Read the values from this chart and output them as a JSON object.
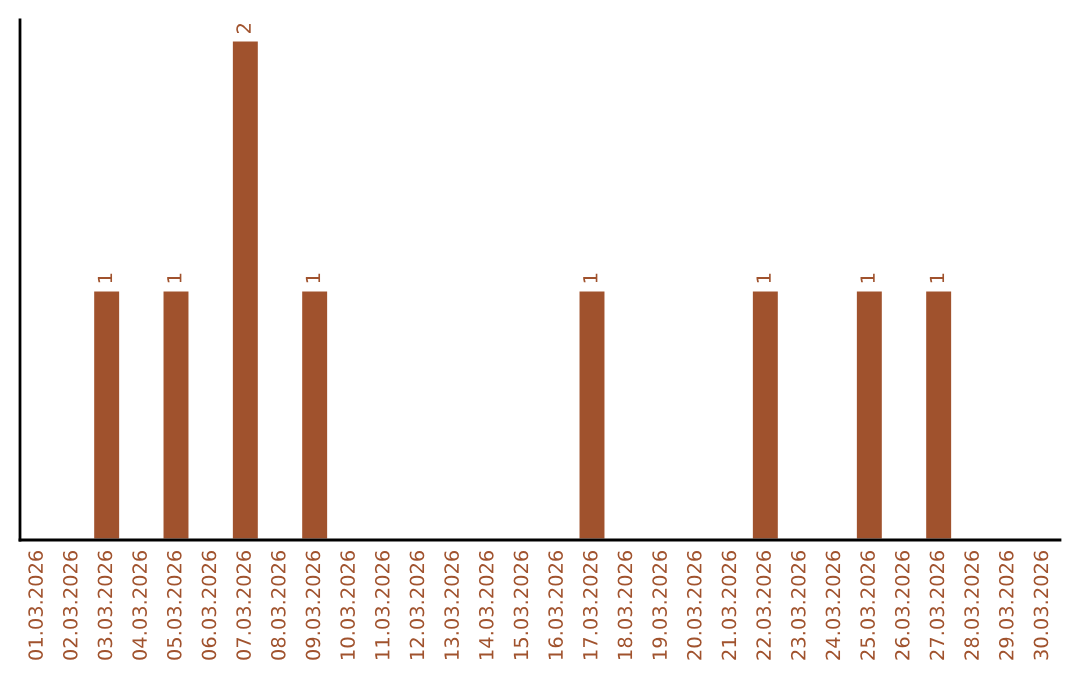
{
  "chart_data": {
    "type": "bar",
    "categories": [
      "01.03.2026",
      "02.03.2026",
      "03.03.2026",
      "04.03.2026",
      "05.03.2026",
      "06.03.2026",
      "07.03.2026",
      "08.03.2026",
      "09.03.2026",
      "10.03.2026",
      "11.03.2026",
      "12.03.2026",
      "13.03.2026",
      "14.03.2026",
      "15.03.2026",
      "16.03.2026",
      "17.03.2026",
      "18.03.2026",
      "19.03.2026",
      "20.03.2026",
      "21.03.2026",
      "22.03.2026",
      "23.03.2026",
      "24.03.2026",
      "25.03.2026",
      "26.03.2026",
      "27.03.2026",
      "28.03.2026",
      "29.03.2026",
      "30.03.2026"
    ],
    "values": [
      null,
      null,
      1,
      null,
      1,
      null,
      2,
      null,
      1,
      null,
      null,
      null,
      null,
      null,
      null,
      null,
      1,
      null,
      null,
      null,
      null,
      1,
      null,
      null,
      1,
      null,
      1,
      null,
      null,
      null
    ],
    "value_labels": [
      null,
      null,
      "1",
      null,
      "1",
      null,
      "2",
      null,
      "1",
      null,
      null,
      null,
      null,
      null,
      null,
      null,
      "1",
      null,
      null,
      null,
      null,
      "1",
      null,
      null,
      "1",
      null,
      "1",
      null,
      null,
      null
    ],
    "color": "#a0522d",
    "ylim": [
      0,
      2.08
    ],
    "tick_labels": "x",
    "grid": false,
    "legend": false
  }
}
